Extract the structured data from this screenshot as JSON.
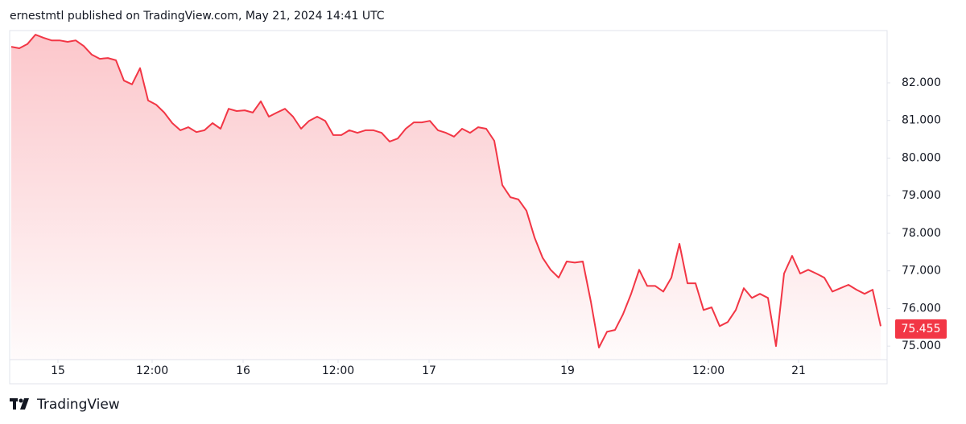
{
  "header": "ernestmtl published on TradingView.com, May 21, 2024 14:41 UTC",
  "brand": "TradingView",
  "chart_data": {
    "type": "area",
    "color": "#f23645",
    "values": [
      82.96,
      82.92,
      83.03,
      83.28,
      83.2,
      83.13,
      83.13,
      83.09,
      83.13,
      82.98,
      82.75,
      82.64,
      82.66,
      82.6,
      82.06,
      81.96,
      82.39,
      81.53,
      81.42,
      81.21,
      80.93,
      80.74,
      80.82,
      80.69,
      80.74,
      80.93,
      80.78,
      81.31,
      81.25,
      81.27,
      81.21,
      81.51,
      81.1,
      81.21,
      81.31,
      81.1,
      80.78,
      80.99,
      81.1,
      80.99,
      80.61,
      80.61,
      80.74,
      80.67,
      80.74,
      80.74,
      80.67,
      80.44,
      80.52,
      80.78,
      80.95,
      80.95,
      80.99,
      80.74,
      80.67,
      80.57,
      80.78,
      80.67,
      80.82,
      80.78,
      80.46,
      79.28,
      78.96,
      78.9,
      78.6,
      77.89,
      77.35,
      77.03,
      76.82,
      77.25,
      77.22,
      77.25,
      76.18,
      74.96,
      75.38,
      75.43,
      75.85,
      76.39,
      77.03,
      76.6,
      76.6,
      76.45,
      76.82,
      77.72,
      76.67,
      76.67,
      75.96,
      76.03,
      75.53,
      75.64,
      75.96,
      76.54,
      76.28,
      76.39,
      76.28,
      75.0,
      76.93,
      77.4,
      76.93,
      77.03,
      76.93,
      76.82,
      76.45,
      76.54,
      76.63,
      76.5,
      76.39,
      76.5,
      75.53
    ],
    "last_value": 75.455,
    "xlim": [
      -0.2,
      108.8
    ],
    "xticks": [
      {
        "value": 5.8,
        "label": "15"
      },
      {
        "value": 17.5,
        "label": "12:00"
      },
      {
        "value": 28.8,
        "label": "16"
      },
      {
        "value": 40.6,
        "label": "12:00"
      },
      {
        "value": 51.9,
        "label": "17"
      },
      {
        "value": 69.1,
        "label": "19"
      },
      {
        "value": 86.6,
        "label": "12:00"
      },
      {
        "value": 97.8,
        "label": "21"
      }
    ],
    "ylim": [
      74.64,
      83.39
    ],
    "yticks": [
      {
        "value": 75,
        "label": "75.000"
      },
      {
        "value": 76,
        "label": "76.000"
      },
      {
        "value": 77,
        "label": "77.000"
      },
      {
        "value": 78,
        "label": "78.000"
      },
      {
        "value": 79,
        "label": "79.000"
      },
      {
        "value": 80,
        "label": "80.000"
      },
      {
        "value": 81,
        "label": "81.000"
      },
      {
        "value": 82,
        "label": "82.000"
      }
    ]
  }
}
